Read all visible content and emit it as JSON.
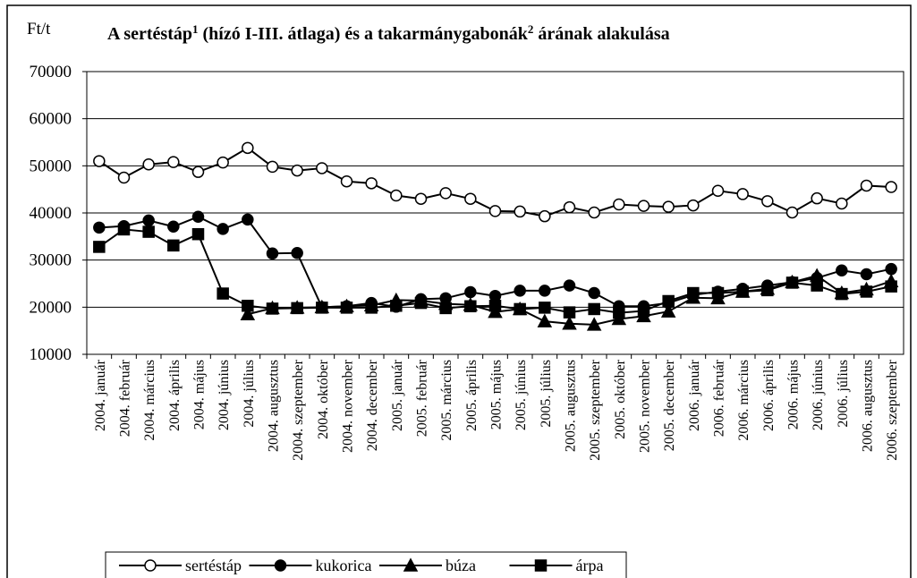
{
  "chart_data": {
    "type": "line",
    "title": [
      "A sertéstáp",
      "1",
      " (hízó I-III. átlaga) és a takarmánygabonák",
      "2",
      " árának alakulása"
    ],
    "y_label": "Ft/t",
    "categories": [
      "2004. január",
      "2004. február",
      "2004. március",
      "2004. április",
      "2004. május",
      "2004. június",
      "2004. július",
      "2004. augusztus",
      "2004. szeptember",
      "2004. október",
      "2004. november",
      "2004. december",
      "2005. január",
      "2005. február",
      "2005. március",
      "2005. április",
      "2005. május",
      "2005. június",
      "2005. július",
      "2005. augusztus",
      "2005. szeptember",
      "2005. október",
      "2005. november",
      "2005. december",
      "2006. január",
      "2006. február",
      "2006. március",
      "2006. április",
      "2006. május",
      "2006. június",
      "2006. július",
      "2006. augusztus",
      "2006. szeptember"
    ],
    "series": [
      {
        "name": "sertéstáp",
        "color": "#000000",
        "marker": "circle-open",
        "values": [
          51000,
          47500,
          50300,
          50800,
          48700,
          50700,
          53800,
          49800,
          49000,
          49500,
          46700,
          46300,
          43700,
          43000,
          44200,
          43000,
          40400,
          40300,
          39300,
          41200,
          40100,
          41800,
          41500,
          41300,
          41600,
          44700,
          44000,
          42500,
          40100,
          43100,
          42000,
          45800,
          45500
        ]
      },
      {
        "name": "kukorica",
        "color": "#000000",
        "marker": "circle",
        "values": [
          36900,
          37200,
          38400,
          37100,
          39200,
          36600,
          38600,
          31400,
          31500,
          20000,
          20200,
          20900,
          20100,
          21700,
          21900,
          23200,
          22400,
          23500,
          23500,
          24600,
          23000,
          20200,
          20200,
          20900,
          22600,
          23300,
          23900,
          24600,
          25300,
          26200,
          27800,
          27000,
          28100
        ]
      },
      {
        "name": "búza",
        "color": "#000000",
        "marker": "triangle",
        "values": [
          null,
          null,
          null,
          null,
          null,
          null,
          18500,
          19800,
          19900,
          20000,
          20200,
          20400,
          21500,
          21400,
          20700,
          20500,
          19000,
          19600,
          17000,
          16500,
          16300,
          17500,
          18100,
          19100,
          22000,
          21900,
          23300,
          23900,
          25300,
          26700,
          23000,
          23800,
          25500
        ]
      },
      {
        "name": "árpa",
        "color": "#000000",
        "marker": "square",
        "values": [
          32800,
          36500,
          36000,
          33100,
          35500,
          22900,
          20300,
          19700,
          19800,
          19900,
          19900,
          19900,
          20300,
          20900,
          19800,
          20200,
          20300,
          19600,
          19900,
          18900,
          19600,
          18800,
          19200,
          21300,
          23000,
          23000,
          23300,
          23600,
          25200,
          24600,
          22800,
          23300,
          24400
        ]
      }
    ],
    "ylim": [
      10000,
      70000
    ],
    "yticks": [
      10000,
      20000,
      30000,
      40000,
      50000,
      60000,
      70000
    ],
    "grid": true,
    "legend": "bottom"
  }
}
